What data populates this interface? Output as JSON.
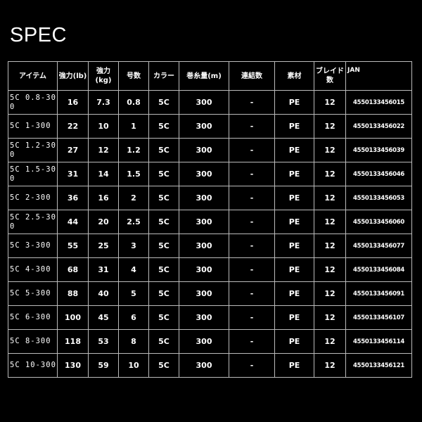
{
  "title": "SPEC",
  "headers": [
    "アイテム",
    "強力(lb)",
    "強力(kg)",
    "号数",
    "カラー",
    "巻糸量(m)",
    "連結数",
    "素材",
    "ブレイド数",
    "JAN"
  ],
  "rows": [
    [
      "5C 0.8-300",
      "16",
      "7.3",
      "0.8",
      "5C",
      "300",
      "-",
      "PE",
      "12",
      "4550133456015"
    ],
    [
      "5C 1-300",
      "22",
      "10",
      "1",
      "5C",
      "300",
      "-",
      "PE",
      "12",
      "4550133456022"
    ],
    [
      "5C 1.2-300",
      "27",
      "12",
      "1.2",
      "5C",
      "300",
      "-",
      "PE",
      "12",
      "4550133456039"
    ],
    [
      "5C 1.5-300",
      "31",
      "14",
      "1.5",
      "5C",
      "300",
      "-",
      "PE",
      "12",
      "4550133456046"
    ],
    [
      "5C 2-300",
      "36",
      "16",
      "2",
      "5C",
      "300",
      "-",
      "PE",
      "12",
      "4550133456053"
    ],
    [
      "5C 2.5-300",
      "44",
      "20",
      "2.5",
      "5C",
      "300",
      "-",
      "PE",
      "12",
      "4550133456060"
    ],
    [
      "5C 3-300",
      "55",
      "25",
      "3",
      "5C",
      "300",
      "-",
      "PE",
      "12",
      "4550133456077"
    ],
    [
      "5C 4-300",
      "68",
      "31",
      "4",
      "5C",
      "300",
      "-",
      "PE",
      "12",
      "4550133456084"
    ],
    [
      "5C 5-300",
      "88",
      "40",
      "5",
      "5C",
      "300",
      "-",
      "PE",
      "12",
      "4550133456091"
    ],
    [
      "5C 6-300",
      "100",
      "45",
      "6",
      "5C",
      "300",
      "-",
      "PE",
      "12",
      "4550133456107"
    ],
    [
      "5C 8-300",
      "118",
      "53",
      "8",
      "5C",
      "300",
      "-",
      "PE",
      "12",
      "4550133456114"
    ],
    [
      "5C 10-300",
      "130",
      "59",
      "10",
      "5C",
      "300",
      "-",
      "PE",
      "12",
      "4550133456121"
    ]
  ]
}
